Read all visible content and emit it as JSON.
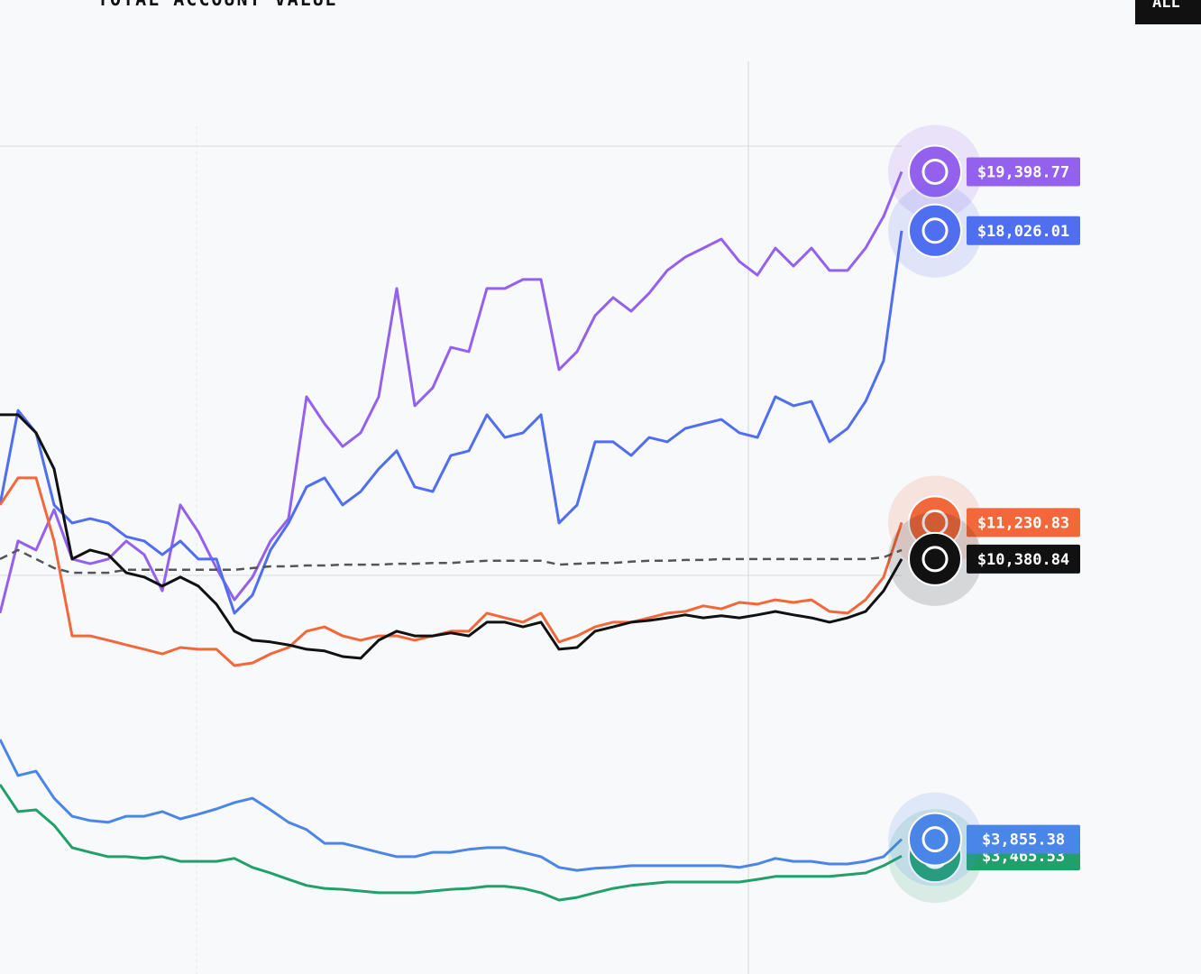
{
  "chart_data": {
    "type": "line",
    "title": "TOTAL ACCOUNT VALUE",
    "range_button": "ALL",
    "ylim": [
      718,
      23398
    ],
    "series": [
      {
        "color": "#9461ee",
        "values": [
          9120,
          10800,
          10590,
          11530,
          10380,
          10270,
          10380,
          10800,
          10480,
          9640,
          11640,
          11010,
          10170,
          9430,
          9960,
          10800,
          11320,
          14160,
          13530,
          13000,
          13320,
          14160,
          16680,
          13950,
          14370,
          15310,
          15210,
          16680,
          16680,
          16890,
          16890,
          14790,
          15210,
          16050,
          16470,
          16150,
          16570,
          17100,
          17410,
          17620,
          17830,
          17310,
          16990,
          17620,
          17200,
          17620,
          17100,
          17100,
          17620,
          18360,
          19398.77
        ],
        "value_labels": [
          null,
          null,
          null,
          null,
          null,
          null,
          null,
          null,
          null,
          null,
          null,
          null,
          null,
          null,
          null,
          null,
          null,
          null,
          null,
          null,
          null,
          null,
          null,
          null,
          null,
          null,
          null,
          null,
          null,
          null,
          null,
          null,
          null,
          null,
          null,
          null,
          null,
          null,
          null,
          null,
          null,
          null,
          null,
          null,
          null,
          null,
          null,
          null,
          null,
          null,
          "$19,398.77"
        ]
      },
      {
        "color": "#4f6ef0",
        "values": [
          11640,
          13840,
          13320,
          11640,
          11220,
          11320,
          11220,
          10900,
          10800,
          10480,
          10800,
          10380,
          10380,
          9120,
          9540,
          10590,
          11220,
          12060,
          12270,
          11640,
          11950,
          12480,
          12900,
          12060,
          11950,
          12790,
          12900,
          13740,
          13210,
          13320,
          13740,
          11220,
          11640,
          13110,
          13110,
          12790,
          13210,
          13110,
          13420,
          13530,
          13630,
          13320,
          13210,
          14160,
          13950,
          14050,
          13110,
          13420,
          14050,
          15000,
          18026.01
        ],
        "value_labels": [
          null,
          null,
          null,
          null,
          null,
          null,
          null,
          null,
          null,
          null,
          null,
          null,
          null,
          null,
          null,
          null,
          null,
          null,
          null,
          null,
          null,
          null,
          null,
          null,
          null,
          null,
          null,
          null,
          null,
          null,
          null,
          null,
          null,
          null,
          null,
          null,
          null,
          null,
          null,
          null,
          null,
          null,
          null,
          null,
          null,
          null,
          null,
          null,
          null,
          null,
          "$18,026.01"
        ]
      },
      {
        "color": "#f2683a",
        "values": [
          11640,
          12270,
          12270,
          10800,
          8590,
          8590,
          8490,
          8380,
          8280,
          8170,
          8320,
          8280,
          8280,
          7900,
          7960,
          8170,
          8320,
          8700,
          8800,
          8590,
          8490,
          8590,
          8590,
          8490,
          8590,
          8700,
          8700,
          9120,
          9010,
          8910,
          9120,
          8450,
          8590,
          8800,
          8910,
          8910,
          9010,
          9120,
          9160,
          9290,
          9220,
          9370,
          9330,
          9430,
          9370,
          9430,
          9160,
          9120,
          9430,
          9960,
          11230.83
        ],
        "value_labels": [
          null,
          null,
          null,
          null,
          null,
          null,
          null,
          null,
          null,
          null,
          null,
          null,
          null,
          null,
          null,
          null,
          null,
          null,
          null,
          null,
          null,
          null,
          null,
          null,
          null,
          null,
          null,
          null,
          null,
          null,
          null,
          null,
          null,
          null,
          null,
          null,
          null,
          null,
          null,
          null,
          null,
          null,
          null,
          null,
          null,
          null,
          null,
          null,
          null,
          null,
          "$11,230.83"
        ]
      },
      {
        "color": "#111111",
        "values": [
          13740,
          13740,
          13320,
          12480,
          10380,
          10590,
          10480,
          10060,
          9960,
          9750,
          9960,
          9750,
          9330,
          8700,
          8490,
          8450,
          8380,
          8280,
          8240,
          8110,
          8070,
          8490,
          8700,
          8590,
          8590,
          8660,
          8590,
          8910,
          8910,
          8800,
          8910,
          8280,
          8320,
          8700,
          8800,
          8910,
          8950,
          9010,
          9080,
          9010,
          9060,
          9010,
          9080,
          9160,
          9080,
          9010,
          8910,
          9010,
          9160,
          9640,
          10380.84
        ],
        "value_labels": [
          null,
          null,
          null,
          null,
          null,
          null,
          null,
          null,
          null,
          null,
          null,
          null,
          null,
          null,
          null,
          null,
          null,
          null,
          null,
          null,
          null,
          null,
          null,
          null,
          null,
          null,
          null,
          null,
          null,
          null,
          null,
          null,
          null,
          null,
          null,
          null,
          null,
          null,
          null,
          null,
          null,
          null,
          null,
          null,
          null,
          null,
          null,
          null,
          null,
          null,
          "$10,380.84"
        ]
      },
      {
        "color": "#555555",
        "dashed": true,
        "values": [
          10380,
          10590,
          10380,
          10170,
          10060,
          10060,
          10060,
          10130,
          10130,
          10130,
          10130,
          10130,
          10130,
          10130,
          10170,
          10210,
          10210,
          10230,
          10230,
          10250,
          10250,
          10250,
          10270,
          10270,
          10290,
          10290,
          10320,
          10340,
          10340,
          10340,
          10340,
          10250,
          10270,
          10290,
          10290,
          10320,
          10340,
          10340,
          10360,
          10360,
          10380,
          10380,
          10380,
          10380,
          10380,
          10380,
          10380,
          10380,
          10380,
          10420,
          10590
        ]
      },
      {
        "color": "#22a06b",
        "values": [
          5130,
          4500,
          4540,
          4180,
          3660,
          3550,
          3450,
          3450,
          3410,
          3450,
          3340,
          3340,
          3340,
          3410,
          3200,
          3070,
          2920,
          2780,
          2710,
          2690,
          2650,
          2610,
          2610,
          2610,
          2650,
          2690,
          2710,
          2760,
          2760,
          2710,
          2610,
          2440,
          2500,
          2610,
          2710,
          2780,
          2820,
          2860,
          2860,
          2860,
          2860,
          2860,
          2920,
          2990,
          2990,
          2990,
          2990,
          3030,
          3070,
          3240,
          3465.53
        ],
        "value_labels": [
          null,
          null,
          null,
          null,
          null,
          null,
          null,
          null,
          null,
          null,
          null,
          null,
          null,
          null,
          null,
          null,
          null,
          null,
          null,
          null,
          null,
          null,
          null,
          null,
          null,
          null,
          null,
          null,
          null,
          null,
          null,
          null,
          null,
          null,
          null,
          null,
          null,
          null,
          null,
          null,
          null,
          null,
          null,
          null,
          null,
          null,
          null,
          null,
          null,
          null,
          "$3,465.53"
        ]
      },
      {
        "color": "#4a86e8",
        "values": [
          6180,
          5340,
          5440,
          4810,
          4390,
          4290,
          4250,
          4390,
          4390,
          4500,
          4330,
          4440,
          4560,
          4710,
          4810,
          4540,
          4250,
          4080,
          3760,
          3760,
          3660,
          3550,
          3450,
          3450,
          3550,
          3550,
          3620,
          3660,
          3660,
          3550,
          3450,
          3200,
          3130,
          3180,
          3200,
          3240,
          3240,
          3240,
          3240,
          3240,
          3240,
          3200,
          3280,
          3410,
          3340,
          3340,
          3280,
          3280,
          3340,
          3450,
          3855.38
        ],
        "value_labels": [
          null,
          null,
          null,
          null,
          null,
          null,
          null,
          null,
          null,
          null,
          null,
          null,
          null,
          null,
          null,
          null,
          null,
          null,
          null,
          null,
          null,
          null,
          null,
          null,
          null,
          null,
          null,
          null,
          null,
          null,
          null,
          null,
          null,
          null,
          null,
          null,
          null,
          null,
          null,
          null,
          null,
          null,
          null,
          null,
          null,
          null,
          null,
          null,
          null,
          null,
          "$3,855.38"
        ]
      }
    ]
  }
}
